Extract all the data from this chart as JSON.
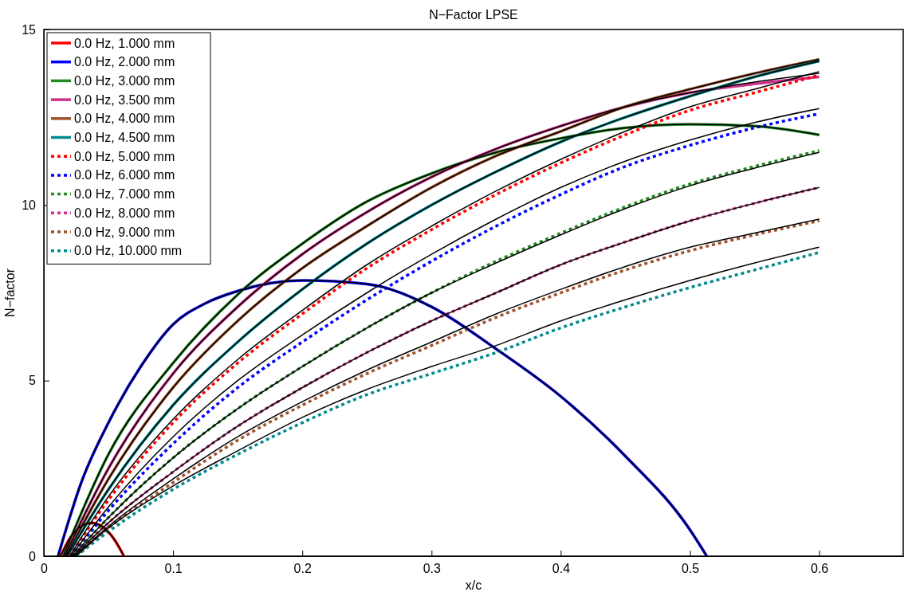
{
  "chart_data": {
    "type": "line",
    "title": "N−Factor LPSE",
    "xlabel": "x/c",
    "ylabel": "N−factor",
    "xlim": [
      0,
      0.665
    ],
    "ylim": [
      0,
      15
    ],
    "xticks": [
      0,
      0.1,
      0.2,
      0.3,
      0.4,
      0.5,
      0.6
    ],
    "yticks": [
      0,
      5,
      10,
      15
    ],
    "grid": false,
    "legend": "top left",
    "marker": "none",
    "series": [
      {
        "name": "0.0 Hz, 1.000 mm",
        "color": "#ff0000",
        "line_style": "solid",
        "x": [
          0.013,
          0.02,
          0.03,
          0.037,
          0.045,
          0.055,
          0.062
        ],
        "values": [
          0,
          0.5,
          0.88,
          0.95,
          0.85,
          0.45,
          0
        ]
      },
      {
        "name": "0.0 Hz, 2.000 mm",
        "color": "#0000ff",
        "line_style": "solid",
        "x": [
          0.011,
          0.02,
          0.028,
          0.05,
          0.075,
          0.1,
          0.125,
          0.15,
          0.2,
          0.25,
          0.3,
          0.35,
          0.4,
          0.45,
          0.5,
          0.513
        ],
        "values": [
          0,
          1.1,
          2.0,
          3.8,
          5.4,
          6.6,
          7.2,
          7.55,
          7.85,
          7.75,
          7.1,
          5.9,
          4.55,
          2.85,
          0.75,
          0
        ]
      },
      {
        "name": "0.0 Hz, 3.000 mm",
        "color": "#228b22",
        "line_style": "solid",
        "x": [
          0.015,
          0.05,
          0.1,
          0.15,
          0.2,
          0.25,
          0.3,
          0.35,
          0.4,
          0.45,
          0.5,
          0.55,
          0.6
        ],
        "values": [
          0,
          2.9,
          5.5,
          7.45,
          8.9,
          10.1,
          10.9,
          11.5,
          11.9,
          12.2,
          12.3,
          12.25,
          12.0
        ]
      },
      {
        "name": "0.0 Hz, 3.500 mm",
        "color": "#d0308a",
        "line_style": "solid",
        "x": [
          0.016,
          0.05,
          0.1,
          0.15,
          0.2,
          0.25,
          0.3,
          0.35,
          0.4,
          0.45,
          0.5,
          0.55,
          0.6
        ],
        "values": [
          0,
          2.5,
          5.2,
          7.1,
          8.6,
          9.8,
          10.8,
          11.6,
          12.25,
          12.8,
          13.2,
          13.45,
          13.65
        ]
      },
      {
        "name": "0.0 Hz, 4.000 mm",
        "color": "#a0522d",
        "line_style": "solid",
        "x": [
          0.017,
          0.05,
          0.1,
          0.15,
          0.2,
          0.25,
          0.3,
          0.35,
          0.4,
          0.45,
          0.5,
          0.55,
          0.6
        ],
        "values": [
          0,
          2.2,
          4.8,
          6.7,
          8.2,
          9.4,
          10.5,
          11.4,
          12.1,
          12.8,
          13.3,
          13.75,
          14.15
        ]
      },
      {
        "name": "0.0 Hz, 4.500 mm",
        "color": "#008b8b",
        "line_style": "solid",
        "x": [
          0.018,
          0.05,
          0.1,
          0.15,
          0.2,
          0.25,
          0.3,
          0.35,
          0.4,
          0.45,
          0.5,
          0.55,
          0.6
        ],
        "values": [
          0,
          1.9,
          4.3,
          6.1,
          7.6,
          8.9,
          10.0,
          10.95,
          11.8,
          12.5,
          13.1,
          13.65,
          14.1
        ]
      },
      {
        "name": "0.0 Hz, 5.000 mm",
        "color": "#ff0000",
        "line_style": "dotted",
        "x": [
          0.02,
          0.05,
          0.1,
          0.15,
          0.2,
          0.25,
          0.3,
          0.35,
          0.4,
          0.45,
          0.5,
          0.55,
          0.6
        ],
        "values": [
          0,
          1.6,
          3.8,
          5.5,
          6.9,
          8.2,
          9.3,
          10.3,
          11.2,
          12.0,
          12.7,
          13.2,
          13.7
        ]
      },
      {
        "name": "0.0 Hz, 6.000 mm",
        "color": "#0000ff",
        "line_style": "dotted",
        "x": [
          0.021,
          0.05,
          0.1,
          0.15,
          0.2,
          0.25,
          0.3,
          0.35,
          0.4,
          0.45,
          0.5,
          0.55,
          0.6
        ],
        "values": [
          0,
          1.3,
          3.2,
          4.8,
          6.1,
          7.3,
          8.4,
          9.4,
          10.3,
          11.1,
          11.7,
          12.2,
          12.6
        ]
      },
      {
        "name": "0.0 Hz, 7.000 mm",
        "color": "#228b22",
        "line_style": "dotted",
        "x": [
          0.022,
          0.05,
          0.1,
          0.15,
          0.2,
          0.25,
          0.3,
          0.35,
          0.4,
          0.45,
          0.5,
          0.55,
          0.6
        ],
        "values": [
          0,
          1.1,
          2.8,
          4.2,
          5.4,
          6.5,
          7.5,
          8.4,
          9.2,
          9.95,
          10.6,
          11.1,
          11.55
        ]
      },
      {
        "name": "0.0 Hz, 8.000 mm",
        "color": "#d0308a",
        "line_style": "dotted",
        "x": [
          0.023,
          0.05,
          0.1,
          0.15,
          0.2,
          0.25,
          0.3,
          0.35,
          0.4,
          0.45,
          0.5,
          0.55,
          0.6
        ],
        "values": [
          0,
          0.95,
          2.4,
          3.7,
          4.8,
          5.8,
          6.7,
          7.5,
          8.3,
          8.95,
          9.55,
          10.05,
          10.5
        ]
      },
      {
        "name": "0.0 Hz, 9.000 mm",
        "color": "#a0522d",
        "line_style": "dotted",
        "x": [
          0.024,
          0.05,
          0.1,
          0.15,
          0.2,
          0.25,
          0.3,
          0.35,
          0.4,
          0.45,
          0.5,
          0.55,
          0.6
        ],
        "values": [
          0,
          0.8,
          2.1,
          3.3,
          4.3,
          5.2,
          6.0,
          6.8,
          7.5,
          8.15,
          8.7,
          9.15,
          9.55
        ]
      },
      {
        "name": "0.0 Hz, 10.000 mm",
        "color": "#008b8b",
        "line_style": "dotted",
        "x": [
          0.025,
          0.05,
          0.1,
          0.15,
          0.2,
          0.25,
          0.3,
          0.35,
          0.4,
          0.45,
          0.5,
          0.55,
          0.6
        ],
        "values": [
          0,
          0.7,
          1.9,
          2.9,
          3.8,
          4.6,
          5.2,
          5.8,
          6.5,
          7.1,
          7.65,
          8.15,
          8.65
        ]
      },
      {
        "color": "#000000",
        "line_style": "solid",
        "x": [
          0.013,
          0.02,
          0.03,
          0.037,
          0.045,
          0.055,
          0.062
        ],
        "values": [
          0,
          0.5,
          0.88,
          0.95,
          0.85,
          0.45,
          0
        ]
      },
      {
        "color": "#000000",
        "line_style": "solid",
        "x": [
          0.011,
          0.02,
          0.028,
          0.05,
          0.075,
          0.1,
          0.125,
          0.15,
          0.2,
          0.25,
          0.3,
          0.35,
          0.4,
          0.45,
          0.5,
          0.513
        ],
        "values": [
          0,
          1.1,
          2.0,
          3.8,
          5.4,
          6.6,
          7.2,
          7.55,
          7.85,
          7.75,
          7.1,
          5.9,
          4.55,
          2.85,
          0.75,
          0
        ]
      },
      {
        "color": "#000000",
        "line_style": "solid",
        "x": [
          0.015,
          0.05,
          0.1,
          0.15,
          0.2,
          0.25,
          0.3,
          0.35,
          0.4,
          0.45,
          0.5,
          0.55,
          0.6
        ],
        "values": [
          0,
          2.9,
          5.5,
          7.45,
          8.9,
          10.1,
          10.9,
          11.5,
          11.9,
          12.2,
          12.3,
          12.25,
          12.0
        ]
      },
      {
        "color": "#000000",
        "line_style": "solid",
        "x": [
          0.016,
          0.05,
          0.1,
          0.15,
          0.2,
          0.25,
          0.3,
          0.35,
          0.4,
          0.45,
          0.5,
          0.55,
          0.6
        ],
        "values": [
          0,
          2.5,
          5.2,
          7.1,
          8.6,
          9.8,
          10.8,
          11.6,
          12.25,
          12.8,
          13.2,
          13.5,
          13.75
        ]
      },
      {
        "color": "#000000",
        "line_style": "solid",
        "x": [
          0.017,
          0.05,
          0.1,
          0.15,
          0.2,
          0.25,
          0.3,
          0.35,
          0.4,
          0.45,
          0.5,
          0.55,
          0.6
        ],
        "values": [
          0,
          2.2,
          4.8,
          6.7,
          8.2,
          9.4,
          10.5,
          11.4,
          12.1,
          12.8,
          13.3,
          13.75,
          14.15
        ]
      },
      {
        "color": "#000000",
        "line_style": "solid",
        "x": [
          0.018,
          0.05,
          0.1,
          0.15,
          0.2,
          0.25,
          0.3,
          0.35,
          0.4,
          0.45,
          0.5,
          0.55,
          0.6
        ],
        "values": [
          0,
          1.9,
          4.3,
          6.1,
          7.6,
          8.9,
          10.0,
          10.95,
          11.8,
          12.5,
          13.1,
          13.65,
          14.1
        ]
      },
      {
        "color": "#000000",
        "line_style": "solid",
        "x": [
          0.02,
          0.05,
          0.1,
          0.15,
          0.2,
          0.25,
          0.3,
          0.35,
          0.4,
          0.45,
          0.5,
          0.55,
          0.6
        ],
        "values": [
          0,
          1.7,
          3.9,
          5.6,
          7.0,
          8.3,
          9.4,
          10.4,
          11.3,
          12.1,
          12.8,
          13.3,
          13.8
        ]
      },
      {
        "color": "#000000",
        "line_style": "solid",
        "x": [
          0.021,
          0.05,
          0.1,
          0.15,
          0.2,
          0.25,
          0.3,
          0.35,
          0.4,
          0.45,
          0.5,
          0.55,
          0.6
        ],
        "values": [
          0,
          1.4,
          3.4,
          5.0,
          6.3,
          7.5,
          8.6,
          9.6,
          10.5,
          11.25,
          11.85,
          12.35,
          12.75
        ]
      },
      {
        "color": "#000000",
        "line_style": "solid",
        "x": [
          0.022,
          0.05,
          0.1,
          0.15,
          0.2,
          0.25,
          0.3,
          0.35,
          0.4,
          0.45,
          0.5,
          0.55,
          0.6
        ],
        "values": [
          0,
          1.1,
          2.8,
          4.2,
          5.4,
          6.5,
          7.5,
          8.35,
          9.15,
          9.9,
          10.55,
          11.05,
          11.5
        ]
      },
      {
        "color": "#000000",
        "line_style": "solid",
        "x": [
          0.023,
          0.05,
          0.1,
          0.15,
          0.2,
          0.25,
          0.3,
          0.35,
          0.4,
          0.45,
          0.5,
          0.55,
          0.6
        ],
        "values": [
          0,
          0.95,
          2.4,
          3.7,
          4.8,
          5.8,
          6.7,
          7.5,
          8.3,
          8.95,
          9.55,
          10.05,
          10.5
        ]
      },
      {
        "color": "#000000",
        "line_style": "solid",
        "x": [
          0.024,
          0.05,
          0.1,
          0.15,
          0.2,
          0.25,
          0.3,
          0.35,
          0.4,
          0.45,
          0.5,
          0.55,
          0.6
        ],
        "values": [
          0,
          0.85,
          2.2,
          3.4,
          4.4,
          5.3,
          6.1,
          6.9,
          7.6,
          8.25,
          8.8,
          9.2,
          9.6
        ]
      },
      {
        "color": "#000000",
        "line_style": "solid",
        "x": [
          0.025,
          0.05,
          0.1,
          0.15,
          0.2,
          0.25,
          0.3,
          0.35,
          0.4,
          0.45,
          0.5,
          0.55,
          0.6
        ],
        "values": [
          0,
          0.8,
          2.0,
          3.0,
          3.95,
          4.75,
          5.4,
          6.0,
          6.7,
          7.3,
          7.85,
          8.35,
          8.8
        ]
      }
    ]
  }
}
